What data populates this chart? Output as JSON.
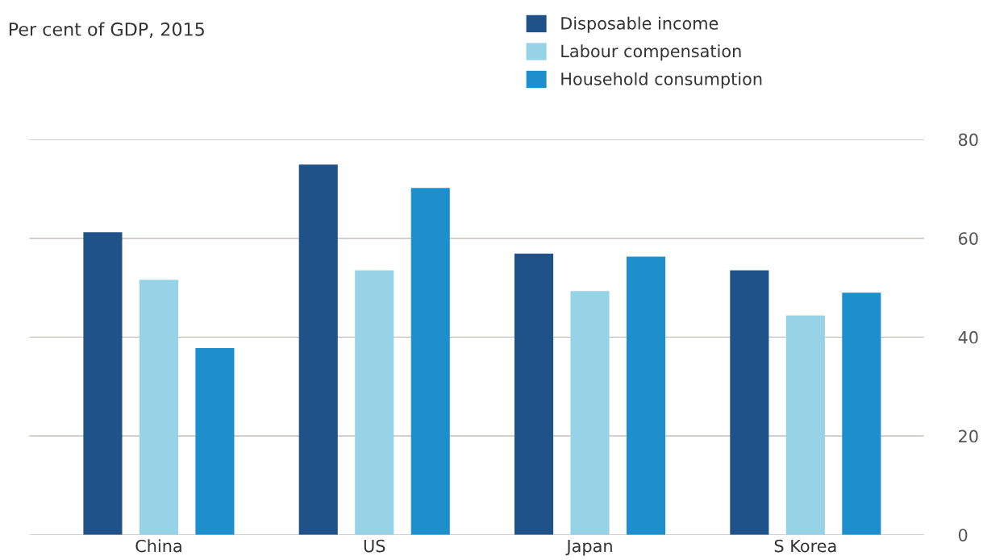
{
  "chart_data": {
    "type": "bar",
    "subtitle": "Per cent of GDP, 2015",
    "categories": [
      "China",
      "US",
      "Japan",
      "S Korea"
    ],
    "series": [
      {
        "name": "Disposable income",
        "color": "#1f5289",
        "values": [
          61.2,
          74.9,
          56.9,
          53.5
        ]
      },
      {
        "name": "Labour compensation",
        "color": "#96d3e6",
        "values": [
          51.6,
          53.5,
          49.3,
          44.4
        ]
      },
      {
        "name": "Household consumption",
        "color": "#1e8fcd",
        "values": [
          37.8,
          70.2,
          56.3,
          49.0
        ]
      }
    ],
    "ylim": [
      0,
      80
    ],
    "yticks": [
      0,
      20,
      40,
      60,
      80
    ],
    "grid": "y",
    "legend": "top"
  }
}
